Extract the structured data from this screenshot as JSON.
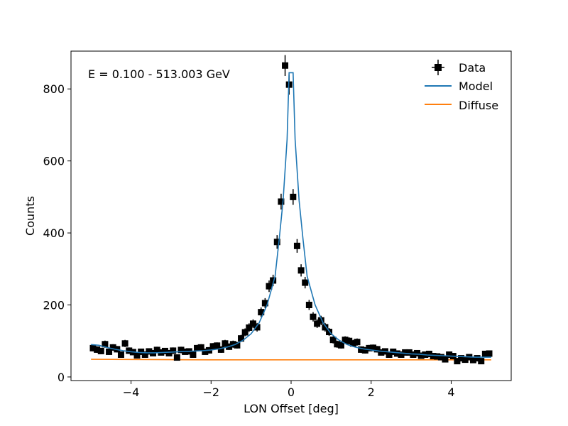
{
  "chart_data": {
    "type": "scatter",
    "annotation": "E = 0.100 - 513.003 GeV",
    "xlabel": "LON Offset [deg]",
    "ylabel": "Counts",
    "xlim": [
      -5.5,
      5.5
    ],
    "ylim": [
      -10,
      905
    ],
    "xticks": [
      -4,
      -2,
      0,
      2,
      4
    ],
    "xtick_labels": [
      "−4",
      "−2",
      "0",
      "2",
      "4"
    ],
    "yticks": [
      0,
      200,
      400,
      600,
      800
    ],
    "ytick_labels": [
      "0",
      "200",
      "400",
      "600",
      "800"
    ],
    "legend_position": "top-right",
    "legend": [
      "Data",
      "Model",
      "Diffuse"
    ],
    "colors": {
      "data": "#000000",
      "model": "#1f77b4",
      "diffuse": "#ff7f0e",
      "axis": "#000000"
    },
    "series": [
      {
        "name": "Data",
        "x": [
          -4.95,
          -4.85,
          -4.75,
          -4.65,
          -4.55,
          -4.45,
          -4.35,
          -4.25,
          -4.15,
          -4.05,
          -3.95,
          -3.85,
          -3.75,
          -3.65,
          -3.55,
          -3.45,
          -3.35,
          -3.25,
          -3.15,
          -3.05,
          -2.95,
          -2.85,
          -2.75,
          -2.65,
          -2.55,
          -2.45,
          -2.35,
          -2.25,
          -2.15,
          -2.05,
          -1.95,
          -1.85,
          -1.75,
          -1.65,
          -1.55,
          -1.45,
          -1.35,
          -1.25,
          -1.15,
          -1.05,
          -0.95,
          -0.85,
          -0.75,
          -0.65,
          -0.55,
          -0.45,
          -0.35,
          -0.25,
          -0.15,
          -0.05,
          0.05,
          0.15,
          0.25,
          0.35,
          0.45,
          0.55,
          0.65,
          0.75,
          0.85,
          0.95,
          1.05,
          1.15,
          1.25,
          1.35,
          1.45,
          1.55,
          1.65,
          1.75,
          1.85,
          1.95,
          2.05,
          2.15,
          2.25,
          2.35,
          2.45,
          2.55,
          2.65,
          2.75,
          2.85,
          2.95,
          3.05,
          3.15,
          3.25,
          3.35,
          3.45,
          3.55,
          3.65,
          3.75,
          3.85,
          3.95,
          4.05,
          4.15,
          4.25,
          4.35,
          4.45,
          4.55,
          4.65,
          4.75,
          4.85,
          4.95
        ],
        "y": [
          80,
          76,
          72,
          91,
          70,
          82,
          77,
          62,
          93,
          73,
          69,
          60,
          70,
          62,
          71,
          66,
          75,
          68,
          72,
          66,
          73,
          54,
          75,
          70,
          71,
          62,
          80,
          82,
          70,
          74,
          85,
          87,
          76,
          93,
          84,
          91,
          88,
          107,
          124,
          137,
          148,
          138,
          180,
          205,
          252,
          268,
          375,
          487,
          865,
          812,
          500,
          364,
          296,
          262,
          200,
          167,
          148,
          157,
          138,
          125,
          103,
          91,
          88,
          103,
          100,
          93,
          97,
          76,
          74,
          80,
          81,
          77,
          68,
          71,
          62,
          70,
          65,
          62,
          68,
          68,
          62,
          66,
          59,
          62,
          64,
          58,
          57,
          55,
          49,
          62,
          58,
          44,
          52,
          48,
          55,
          47,
          52,
          44,
          64,
          65
        ],
        "yerr": [
          9,
          9,
          9,
          10,
          9,
          9,
          9,
          8,
          10,
          9,
          8,
          8,
          8,
          8,
          8,
          8,
          9,
          8,
          8,
          8,
          9,
          7,
          9,
          8,
          8,
          8,
          9,
          9,
          8,
          9,
          9,
          9,
          9,
          10,
          9,
          10,
          9,
          10,
          11,
          12,
          12,
          12,
          13,
          14,
          16,
          16,
          19,
          22,
          29,
          28,
          22,
          19,
          17,
          16,
          14,
          13,
          12,
          13,
          12,
          11,
          10,
          10,
          9,
          10,
          10,
          10,
          10,
          9,
          9,
          9,
          9,
          9,
          8,
          8,
          8,
          8,
          8,
          8,
          8,
          8,
          8,
          8,
          8,
          8,
          8,
          8,
          8,
          7,
          7,
          8,
          8,
          7,
          7,
          7,
          7,
          7,
          7,
          7,
          8,
          8
        ]
      },
      {
        "name": "Model",
        "x": [
          -5.0,
          -4.8,
          -4.6,
          -4.4,
          -4.2,
          -4.0,
          -3.8,
          -3.6,
          -3.4,
          -3.2,
          -3.0,
          -2.8,
          -2.6,
          -2.4,
          -2.2,
          -2.0,
          -1.8,
          -1.6,
          -1.4,
          -1.2,
          -1.0,
          -0.8,
          -0.6,
          -0.4,
          -0.3,
          -0.2,
          -0.1,
          -0.05,
          0.0,
          0.05,
          0.1,
          0.2,
          0.3,
          0.4,
          0.6,
          0.8,
          1.0,
          1.2,
          1.4,
          1.6,
          1.8,
          2.0,
          2.2,
          2.4,
          2.6,
          2.8,
          3.0,
          3.2,
          3.4,
          3.6,
          3.8,
          4.0,
          4.2,
          4.4,
          4.6,
          4.8,
          5.0
        ],
        "y": [
          90,
          88,
          82,
          77,
          73,
          70,
          68,
          67,
          67,
          68,
          69,
          70,
          71,
          72,
          73,
          75,
          78,
          83,
          90,
          102,
          120,
          150,
          200,
          280,
          380,
          490,
          660,
          845,
          845,
          845,
          660,
          490,
          380,
          280,
          200,
          150,
          120,
          102,
          90,
          83,
          78,
          75,
          72,
          70,
          68,
          66,
          64,
          63,
          61,
          60,
          59,
          58,
          57,
          56,
          55,
          55,
          55
        ]
      },
      {
        "name": "Diffuse",
        "x": [
          -5.0,
          -4.0,
          -3.0,
          -2.0,
          -1.0,
          0.0,
          1.0,
          2.0,
          3.0,
          4.0,
          5.0
        ],
        "y": [
          49,
          48.5,
          48,
          47.5,
          47.5,
          47.5,
          47.5,
          47.5,
          47.5,
          47.5,
          47.5
        ]
      }
    ]
  }
}
